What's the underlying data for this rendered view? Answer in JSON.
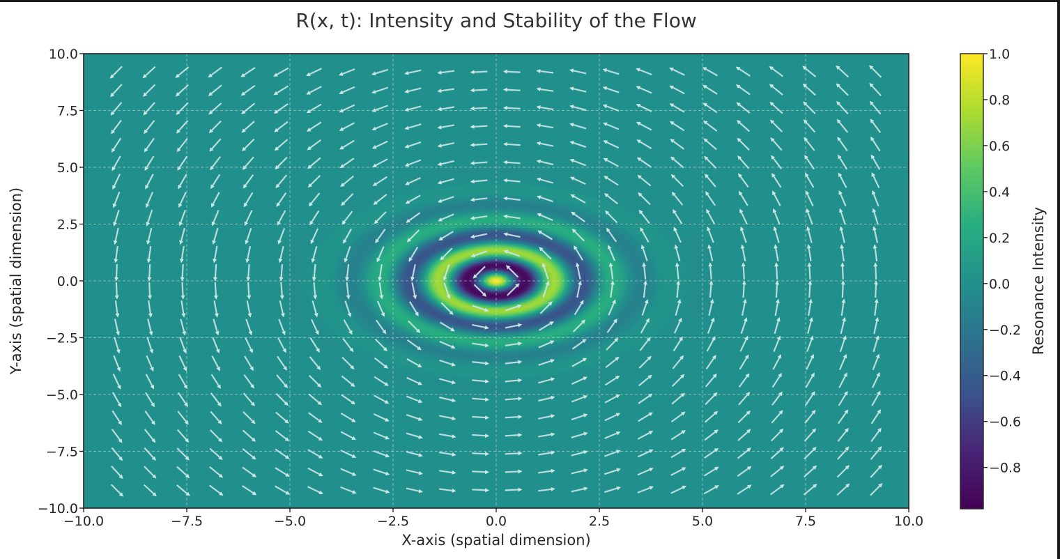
{
  "chart_data": {
    "type": "heatmap",
    "title": "R(x, t): Intensity and Stability of the Flow",
    "xlabel": "X-axis (spatial dimension)",
    "ylabel": "Y-axis (spatial dimension)",
    "xlim": [
      -10.0,
      10.0
    ],
    "ylim": [
      -10.0,
      10.0
    ],
    "xticks": [
      -10.0,
      -7.5,
      -5.0,
      -2.5,
      0.0,
      2.5,
      5.0,
      7.5,
      10.0
    ],
    "yticks": [
      -10.0,
      -7.5,
      -5.0,
      -2.5,
      0.0,
      2.5,
      5.0,
      7.5,
      10.0
    ],
    "xtick_labels": [
      "−10.0",
      "−7.5",
      "−5.0",
      "−2.5",
      "0.0",
      "2.5",
      "5.0",
      "7.5",
      "10.0"
    ],
    "ytick_labels": [
      "−10.0",
      "−7.5",
      "−5.0",
      "−2.5",
      "0.0",
      "2.5",
      "5.0",
      "7.5",
      "10.0"
    ],
    "grid": true,
    "colormap": "viridis",
    "colorbar": {
      "label": "Resonance Intensity",
      "range": [
        -0.98,
        1.0
      ],
      "ticks": [
        1.0,
        0.8,
        0.6,
        0.4,
        0.2,
        0.0,
        -0.2,
        -0.4,
        -0.6,
        -0.8
      ],
      "tick_labels": [
        "1.0",
        "0.8",
        "0.6",
        "0.4",
        "0.2",
        "0.0",
        "−0.2",
        "−0.4",
        "−0.6",
        "−0.8"
      ]
    },
    "field": {
      "description": "concentric ripple pattern centered at origin, amplitude decaying with radius",
      "peak_value": 1.0,
      "min_value": -0.98,
      "center": [
        0.0,
        0.0
      ]
    },
    "quiver": {
      "type": "rotational flow (counter-clockwise)",
      "grid_x": [
        -9.2,
        -8.4,
        -7.6,
        -6.8,
        -6.0,
        -5.2,
        -4.4,
        -3.6,
        -2.8,
        -2.0,
        -1.2,
        -0.4,
        0.4,
        1.2,
        2.0,
        2.8,
        3.6,
        4.4,
        5.2,
        6.0,
        6.8,
        7.6,
        8.4,
        9.2
      ],
      "grid_y": [
        9.2,
        8.4,
        7.6,
        6.8,
        6.0,
        5.2,
        4.4,
        3.6,
        2.8,
        2.0,
        1.2,
        0.4,
        -0.4,
        -1.2,
        -2.0,
        -2.8,
        -3.6,
        -4.4,
        -5.2,
        -6.0,
        -6.8,
        -7.6,
        -8.4,
        -9.2
      ],
      "color": "#b8e0e0"
    }
  },
  "colors": {
    "grid": "#d0d0d0",
    "arrow": "#c9e6e4",
    "text": "#262626"
  }
}
